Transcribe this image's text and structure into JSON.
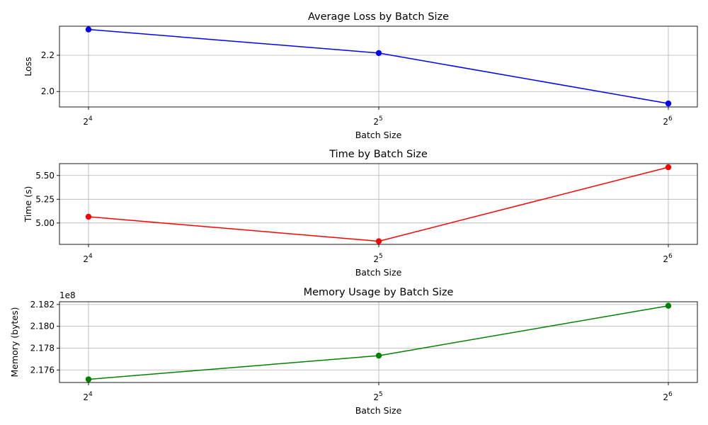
{
  "chart_data": [
    {
      "type": "line",
      "title": "Average Loss by Batch Size",
      "xlabel": "Batch Size",
      "ylabel": "Loss",
      "x_scale": "log2",
      "x": [
        16,
        32,
        64
      ],
      "xticks": [
        {
          "base": "2",
          "exp": "4"
        },
        {
          "base": "2",
          "exp": "5"
        },
        {
          "base": "2",
          "exp": "6"
        }
      ],
      "yticks": [
        "2.0",
        "2.2"
      ],
      "ytick_values": [
        2.0,
        2.2
      ],
      "ylim": [
        1.915,
        2.36
      ],
      "grid": true,
      "color": "#0000ff",
      "series": [
        {
          "values": [
            2.342,
            2.212,
            1.934
          ]
        }
      ]
    },
    {
      "type": "line",
      "title": "Time by Batch Size",
      "xlabel": "Batch Size",
      "ylabel": "Time (s)",
      "x_scale": "log2",
      "x": [
        16,
        32,
        64
      ],
      "xticks": [
        {
          "base": "2",
          "exp": "4"
        },
        {
          "base": "2",
          "exp": "5"
        },
        {
          "base": "2",
          "exp": "6"
        }
      ],
      "yticks": [
        "5.00",
        "5.25",
        "5.50"
      ],
      "ytick_values": [
        5.0,
        5.25,
        5.5
      ],
      "ylim": [
        4.775,
        5.625
      ],
      "grid": true,
      "color": "#ff0000",
      "series": [
        {
          "values": [
            5.066,
            4.808,
            5.587
          ]
        }
      ]
    },
    {
      "type": "line",
      "title": "Memory Usage by Batch Size",
      "xlabel": "Batch Size",
      "ylabel": "Memory (bytes)",
      "x_scale": "log2",
      "offset_label": "1e8",
      "x": [
        16,
        32,
        64
      ],
      "xticks": [
        {
          "base": "2",
          "exp": "4"
        },
        {
          "base": "2",
          "exp": "5"
        },
        {
          "base": "2",
          "exp": "6"
        }
      ],
      "yticks": [
        "2.176",
        "2.178",
        "2.180",
        "2.182"
      ],
      "ytick_values": [
        2.176,
        2.178,
        2.18,
        2.182
      ],
      "ylim": [
        2.17485,
        2.18225
      ],
      "grid": true,
      "color": "#008000",
      "series": [
        {
          "values": [
            2.17514,
            2.17731,
            2.18188
          ]
        }
      ]
    }
  ]
}
